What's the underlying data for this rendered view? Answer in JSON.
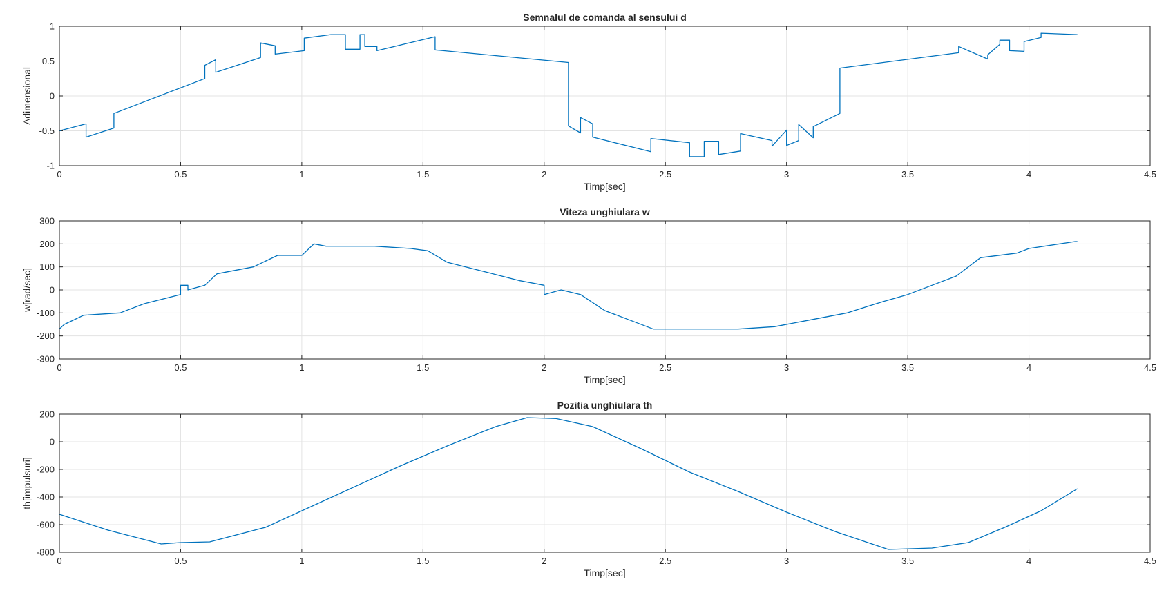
{
  "chart_data": [
    {
      "type": "line",
      "title": "Semnalul de comanda al sensului d",
      "xlabel": "Timp[sec]",
      "ylabel": "Adimensional",
      "xlim": [
        0,
        4.5
      ],
      "ylim": [
        -1,
        1
      ],
      "xticks": [
        "0",
        "0.5",
        "1",
        "1.5",
        "2",
        "2.5",
        "3",
        "3.5",
        "4",
        "4.5"
      ],
      "yticks": [
        "-1",
        "-0.5",
        "0",
        "0.5",
        "1"
      ],
      "grid": true,
      "series": [
        {
          "color": "#0072bd",
          "x": [
            0,
            0.11,
            0.11,
            0.225,
            0.225,
            0.6,
            0.6,
            0.645,
            0.645,
            0.83,
            0.83,
            0.89,
            0.89,
            1.01,
            1.01,
            1.12,
            1.18,
            1.18,
            1.24,
            1.24,
            1.26,
            1.26,
            1.31,
            1.31,
            1.55,
            1.55,
            2.1,
            2.1,
            2.15,
            2.15,
            2.2,
            2.2,
            2.44,
            2.44,
            2.6,
            2.6,
            2.66,
            2.66,
            2.72,
            2.72,
            2.81,
            2.81,
            2.94,
            2.94,
            3.0,
            3.0,
            3.05,
            3.05,
            3.11,
            3.11,
            3.22,
            3.22,
            3.71,
            3.71,
            3.83,
            3.83,
            3.88,
            3.88,
            3.92,
            3.92,
            3.98,
            3.98,
            4.05,
            4.05,
            4.2
          ],
          "y": [
            -0.5,
            -0.4,
            -0.59,
            -0.46,
            -0.25,
            0.25,
            0.44,
            0.52,
            0.34,
            0.55,
            0.76,
            0.72,
            0.6,
            0.65,
            0.83,
            0.88,
            0.88,
            0.67,
            0.67,
            0.88,
            0.88,
            0.71,
            0.71,
            0.65,
            0.85,
            0.66,
            0.48,
            -0.43,
            -0.53,
            -0.31,
            -0.4,
            -0.59,
            -0.8,
            -0.61,
            -0.67,
            -0.87,
            -0.87,
            -0.65,
            -0.65,
            -0.84,
            -0.79,
            -0.54,
            -0.64,
            -0.72,
            -0.49,
            -0.71,
            -0.64,
            -0.41,
            -0.6,
            -0.44,
            -0.25,
            0.4,
            0.62,
            0.71,
            0.53,
            0.59,
            0.74,
            0.8,
            0.8,
            0.65,
            0.64,
            0.78,
            0.84,
            0.9,
            0.88
          ]
        }
      ]
    },
    {
      "type": "line",
      "title": "Viteza unghiulara w",
      "xlabel": "Timp[sec]",
      "ylabel": "w[rad/sec]",
      "xlim": [
        0,
        4.5
      ],
      "ylim": [
        -300,
        300
      ],
      "xticks": [
        "0",
        "0.5",
        "1",
        "1.5",
        "2",
        "2.5",
        "3",
        "3.5",
        "4",
        "4.5"
      ],
      "yticks": [
        "-300",
        "-200",
        "-100",
        "0",
        "100",
        "200",
        "300"
      ],
      "grid": true,
      "series": [
        {
          "color": "#0072bd",
          "x": [
            0,
            0.02,
            0.1,
            0.25,
            0.35,
            0.5,
            0.5,
            0.53,
            0.53,
            0.6,
            0.65,
            0.7,
            0.8,
            0.9,
            1.0,
            1.05,
            1.1,
            1.3,
            1.45,
            1.52,
            1.6,
            1.75,
            1.9,
            2.0,
            2.0,
            2.07,
            2.15,
            2.25,
            2.35,
            2.45,
            2.6,
            2.8,
            2.95,
            3.1,
            3.25,
            3.4,
            3.5,
            3.6,
            3.7,
            3.75,
            3.8,
            3.95,
            4.0,
            4.19,
            4.2
          ],
          "y": [
            -170,
            -150,
            -110,
            -100,
            -60,
            -20,
            20,
            20,
            0,
            20,
            70,
            80,
            100,
            150,
            150,
            200,
            190,
            190,
            180,
            170,
            120,
            80,
            40,
            20,
            -20,
            0,
            -20,
            -90,
            -130,
            -170,
            -170,
            -170,
            -160,
            -130,
            -100,
            -50,
            -20,
            20,
            60,
            100,
            140,
            160,
            180,
            210,
            210
          ]
        }
      ]
    },
    {
      "type": "line",
      "title": "Pozitia unghiulara th",
      "xlabel": "Timp[sec]",
      "ylabel": "th[impulsuri]",
      "xlim": [
        0,
        4.5
      ],
      "ylim": [
        -800,
        200
      ],
      "xticks": [
        "0",
        "0.5",
        "1",
        "1.5",
        "2",
        "2.5",
        "3",
        "3.5",
        "4",
        "4.5"
      ],
      "yticks": [
        "-800",
        "-600",
        "-400",
        "-200",
        "0",
        "200"
      ],
      "grid": true,
      "series": [
        {
          "color": "#0072bd",
          "x": [
            0,
            0.2,
            0.42,
            0.5,
            0.62,
            0.85,
            1.0,
            1.2,
            1.4,
            1.6,
            1.8,
            1.93,
            2.05,
            2.2,
            2.4,
            2.6,
            2.8,
            3.0,
            3.2,
            3.42,
            3.6,
            3.75,
            3.9,
            4.05,
            4.2
          ],
          "y": [
            -525,
            -640,
            -740,
            -730,
            -725,
            -620,
            -500,
            -340,
            -180,
            -30,
            110,
            175,
            168,
            110,
            -50,
            -220,
            -360,
            -510,
            -650,
            -780,
            -770,
            -730,
            -620,
            -500,
            -340
          ]
        }
      ]
    }
  ]
}
